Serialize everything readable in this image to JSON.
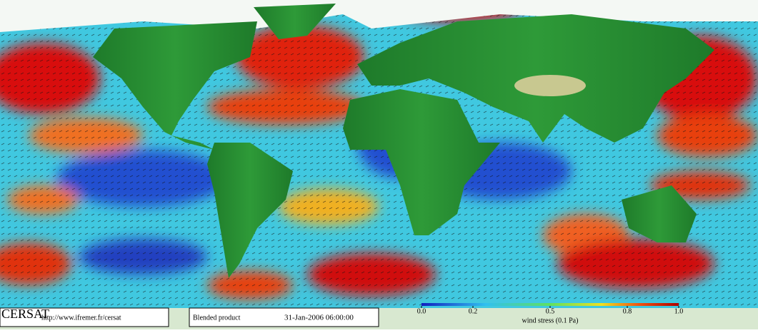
{
  "branding": {
    "logo": "CERSAT",
    "url": "http://www.ifremer.fr/cersat"
  },
  "product": {
    "name": "Blended product",
    "date": "31-Jan-2006 06:00:00"
  },
  "colorbar": {
    "title": "wind stress (0.1 Pa)",
    "lim": [
      0,
      1
    ],
    "ticks": [
      {
        "value": 0,
        "label": "0.0"
      },
      0.2,
      0.5,
      0.8,
      {
        "value": 1,
        "label": "1.0"
      }
    ]
  }
}
